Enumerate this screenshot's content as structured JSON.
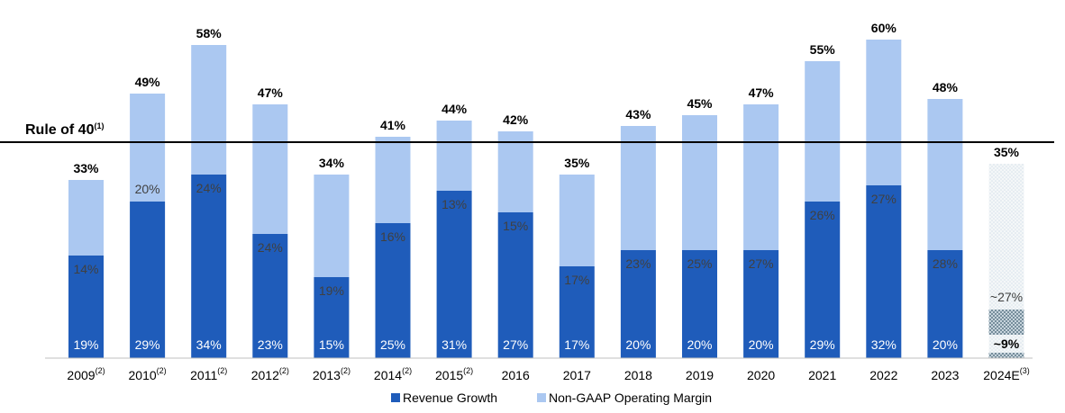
{
  "colors": {
    "revenue": "#1f5cba",
    "margin": "#abc8f1",
    "seg_text_dark_bg": "#ffffff",
    "seg_text_light_bg": "#404040",
    "estimate_margin": "#d6e1ea",
    "estimate_revenue": "#6f8796"
  },
  "rule_line": {
    "label": "Rule of 40",
    "sup": "(1)",
    "value": 40
  },
  "chart_data": {
    "type": "bar",
    "stacked": true,
    "title": "",
    "xlabel": "",
    "ylabel": "",
    "ylim": [
      0,
      62
    ],
    "grid": false,
    "legend_position": "bottom",
    "categories": [
      "2009",
      "2010",
      "2011",
      "2012",
      "2013",
      "2014",
      "2015",
      "2016",
      "2017",
      "2018",
      "2019",
      "2020",
      "2021",
      "2022",
      "2023",
      "2024E"
    ],
    "category_notes": [
      "(2)",
      "(2)",
      "(2)",
      "(2)",
      "(2)",
      "(2)",
      "(2)",
      "",
      "",
      "",
      "",
      "",
      "",
      "",
      "",
      "(3)"
    ],
    "series": [
      {
        "name": "Revenue Growth",
        "values": [
          19,
          29,
          34,
          23,
          15,
          25,
          31,
          27,
          17,
          20,
          20,
          20,
          29,
          32,
          20,
          9
        ]
      },
      {
        "name": "Non-GAAP Operating Margin",
        "values": [
          14,
          20,
          24,
          24,
          19,
          16,
          13,
          15,
          17,
          23,
          25,
          27,
          26,
          27,
          28,
          27
        ]
      }
    ],
    "totals": [
      "33%",
      "49%",
      "58%",
      "47%",
      "34%",
      "41%",
      "44%",
      "42%",
      "35%",
      "43%",
      "45%",
      "47%",
      "55%",
      "60%",
      "48%",
      "35%"
    ],
    "revenue_labels": [
      "19%",
      "29%",
      "34%",
      "23%",
      "15%",
      "25%",
      "31%",
      "27%",
      "17%",
      "20%",
      "20%",
      "20%",
      "29%",
      "32%",
      "20%",
      "~9%"
    ],
    "margin_labels": [
      "14%",
      "20%",
      "24%",
      "24%",
      "19%",
      "16%",
      "13%",
      "15%",
      "17%",
      "23%",
      "25%",
      "27%",
      "26%",
      "27%",
      "28%",
      "~27%"
    ],
    "estimate_index": 15
  }
}
